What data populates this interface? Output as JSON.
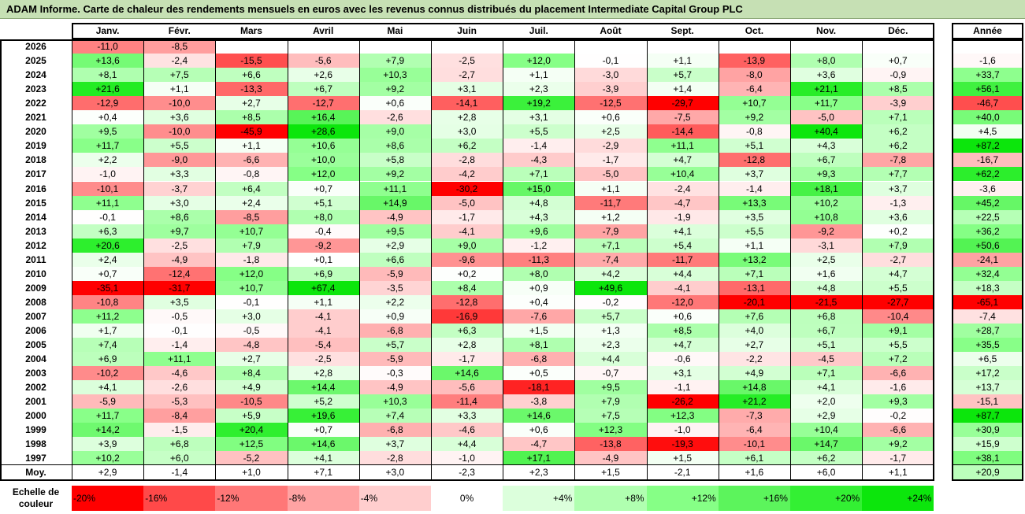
{
  "title": "ADAM Informe. Carte de chaleur des rendements mensuels en euros avec les revenus connus distribués du placement Intermediate Capital Group PLC",
  "chart_data": {
    "type": "heatmap",
    "months": [
      "Janv.",
      "Févr.",
      "Mars",
      "Avril",
      "Mai",
      "Juin",
      "Juil.",
      "Août",
      "Sept.",
      "Oct.",
      "Nov.",
      "Déc."
    ],
    "year_header": "Année",
    "rows": [
      {
        "year": "2026",
        "values": [
          "-11,0",
          "-8,5",
          "",
          "",
          "",
          "",
          "",
          "",
          "",
          "",
          "",
          ""
        ],
        "annual": ""
      },
      {
        "year": "2025",
        "values": [
          "+13,6",
          "-2,4",
          "-15,5",
          "-5,6",
          "+7,9",
          "-2,5",
          "+12,0",
          "-0,1",
          "+1,1",
          "-13,9",
          "+8,0",
          "+0,7"
        ],
        "annual": "-1,6"
      },
      {
        "year": "2024",
        "values": [
          "+8,1",
          "+7,5",
          "+6,6",
          "+2,6",
          "+10,3",
          "-2,7",
          "+1,1",
          "-3,0",
          "+5,7",
          "-8,0",
          "+3,6",
          "-0,9"
        ],
        "annual": "+33,7"
      },
      {
        "year": "2023",
        "values": [
          "+21,6",
          "+1,1",
          "-13,3",
          "+6,7",
          "+9,2",
          "+3,1",
          "+2,3",
          "-3,9",
          "+1,4",
          "-6,4",
          "+21,1",
          "+8,5"
        ],
        "annual": "+56,1"
      },
      {
        "year": "2022",
        "values": [
          "-12,9",
          "-10,0",
          "+2,7",
          "-12,7",
          "+0,6",
          "-14,1",
          "+19,2",
          "-12,5",
          "-29,7",
          "+10,7",
          "+11,7",
          "-3,9"
        ],
        "annual": "-46,7"
      },
      {
        "year": "2021",
        "values": [
          "+0,4",
          "+3,6",
          "+8,5",
          "+16,4",
          "-2,6",
          "+2,8",
          "+3,1",
          "+0,6",
          "-7,5",
          "+9,2",
          "-5,0",
          "+7,1"
        ],
        "annual": "+40,0"
      },
      {
        "year": "2020",
        "values": [
          "+9,5",
          "-10,0",
          "-45,9",
          "+28,6",
          "+9,0",
          "+3,0",
          "+5,5",
          "+2,5",
          "-14,4",
          "-0,8",
          "+40,4",
          "+6,2"
        ],
        "annual": "+4,5"
      },
      {
        "year": "2019",
        "values": [
          "+11,7",
          "+5,5",
          "+1,1",
          "+10,6",
          "+8,6",
          "+6,2",
          "-1,4",
          "-2,9",
          "+11,1",
          "+5,1",
          "+4,3",
          "+6,2"
        ],
        "annual": "+87,2"
      },
      {
        "year": "2018",
        "values": [
          "+2,2",
          "-9,0",
          "-6,6",
          "+10,0",
          "+5,8",
          "-2,8",
          "-4,3",
          "-1,7",
          "+4,7",
          "-12,8",
          "+6,7",
          "-7,8"
        ],
        "annual": "-16,7"
      },
      {
        "year": "2017",
        "values": [
          "-1,0",
          "+3,3",
          "-0,8",
          "+12,0",
          "+9,2",
          "-4,2",
          "+7,1",
          "-5,0",
          "+10,4",
          "+3,7",
          "+9,3",
          "+7,7"
        ],
        "annual": "+62,2"
      },
      {
        "year": "2016",
        "values": [
          "-10,1",
          "-3,7",
          "+6,4",
          "+0,7",
          "+11,1",
          "-30,2",
          "+15,0",
          "+1,1",
          "-2,4",
          "-1,4",
          "+18,1",
          "+3,7"
        ],
        "annual": "-3,6"
      },
      {
        "year": "2015",
        "values": [
          "+11,1",
          "+3,0",
          "+2,4",
          "+5,1",
          "+14,9",
          "-5,0",
          "+4,8",
          "-11,7",
          "-4,7",
          "+13,3",
          "+10,2",
          "-1,3"
        ],
        "annual": "+45,2"
      },
      {
        "year": "2014",
        "values": [
          "-0,1",
          "+8,6",
          "-8,5",
          "+8,0",
          "-4,9",
          "-1,7",
          "+4,3",
          "+1,2",
          "-1,9",
          "+3,5",
          "+10,8",
          "+3,6"
        ],
        "annual": "+22,5"
      },
      {
        "year": "2013",
        "values": [
          "+6,3",
          "+9,7",
          "+10,7",
          "-0,4",
          "+9,5",
          "-4,1",
          "+9,6",
          "-7,9",
          "+4,1",
          "+5,5",
          "-9,2",
          "+0,2"
        ],
        "annual": "+36,2"
      },
      {
        "year": "2012",
        "values": [
          "+20,6",
          "-2,5",
          "+7,9",
          "-9,2",
          "+2,9",
          "+9,0",
          "-1,2",
          "+7,1",
          "+5,4",
          "+1,1",
          "-3,1",
          "+7,9"
        ],
        "annual": "+50,6"
      },
      {
        "year": "2011",
        "values": [
          "+2,4",
          "-4,9",
          "-1,8",
          "+0,1",
          "+6,6",
          "-9,6",
          "-11,3",
          "-7,4",
          "-11,7",
          "+13,2",
          "+2,5",
          "-2,7"
        ],
        "annual": "-24,1"
      },
      {
        "year": "2010",
        "values": [
          "+0,7",
          "-12,4",
          "+12,0",
          "+6,9",
          "-5,9",
          "+0,2",
          "+8,0",
          "+4,2",
          "+4,4",
          "+7,1",
          "+1,6",
          "+4,7"
        ],
        "annual": "+32,4"
      },
      {
        "year": "2009",
        "values": [
          "-35,1",
          "-31,7",
          "+10,7",
          "+67,4",
          "-3,5",
          "+8,4",
          "+0,9",
          "+49,6",
          "-4,1",
          "-13,1",
          "+4,8",
          "+5,5"
        ],
        "annual": "+18,3"
      },
      {
        "year": "2008",
        "values": [
          "-10,8",
          "+3,5",
          "-0,1",
          "+1,1",
          "+2,2",
          "-12,8",
          "+0,4",
          "-0,2",
          "-12,0",
          "-20,1",
          "-21,5",
          "-27,7"
        ],
        "annual": "-65,1"
      },
      {
        "year": "2007",
        "values": [
          "+11,2",
          "-0,5",
          "+3,0",
          "-4,1",
          "+0,9",
          "-16,9",
          "-7,6",
          "+5,7",
          "+0,6",
          "+7,6",
          "+6,8",
          "-10,4"
        ],
        "annual": "-7,4"
      },
      {
        "year": "2006",
        "values": [
          "+1,7",
          "-0,1",
          "-0,5",
          "-4,1",
          "-6,8",
          "+6,3",
          "+1,5",
          "+1,3",
          "+8,5",
          "+4,0",
          "+6,7",
          "+9,1"
        ],
        "annual": "+28,7"
      },
      {
        "year": "2005",
        "values": [
          "+7,4",
          "-1,4",
          "-4,8",
          "-5,4",
          "+5,7",
          "+2,8",
          "+8,1",
          "+2,3",
          "+4,7",
          "+2,7",
          "+5,1",
          "+5,5"
        ],
        "annual": "+35,5"
      },
      {
        "year": "2004",
        "values": [
          "+6,9",
          "+11,1",
          "+2,7",
          "-2,5",
          "-5,9",
          "-1,7",
          "-6,8",
          "+4,4",
          "-0,6",
          "-2,2",
          "-4,5",
          "+7,2"
        ],
        "annual": "+6,5"
      },
      {
        "year": "2003",
        "values": [
          "-10,2",
          "-4,6",
          "+8,4",
          "+2,8",
          "-0,3",
          "+14,6",
          "+0,5",
          "-0,7",
          "+3,1",
          "+4,9",
          "+7,1",
          "-6,6"
        ],
        "annual": "+17,2"
      },
      {
        "year": "2002",
        "values": [
          "+4,1",
          "-2,6",
          "+4,9",
          "+14,4",
          "-4,9",
          "-5,6",
          "-18,1",
          "+9,5",
          "-1,1",
          "+14,8",
          "+4,1",
          "-1,6"
        ],
        "annual": "+13,7"
      },
      {
        "year": "2001",
        "values": [
          "-5,9",
          "-5,3",
          "-10,5",
          "+5,2",
          "+10,3",
          "-11,4",
          "-3,8",
          "+7,9",
          "-26,2",
          "+21,2",
          "+2,0",
          "+9,3"
        ],
        "annual": "-15,1"
      },
      {
        "year": "2000",
        "values": [
          "+11,7",
          "-8,4",
          "+5,9",
          "+19,6",
          "+7,4",
          "+3,3",
          "+14,6",
          "+7,5",
          "+12,3",
          "-7,3",
          "+2,9",
          "-0,2"
        ],
        "annual": "+87,7"
      },
      {
        "year": "1999",
        "values": [
          "+14,2",
          "-1,5",
          "+20,4",
          "+0,7",
          "-6,8",
          "-4,6",
          "+0,6",
          "+12,3",
          "-1,0",
          "-6,4",
          "+10,4",
          "-6,6"
        ],
        "annual": "+30,9"
      },
      {
        "year": "1998",
        "values": [
          "+3,9",
          "+6,8",
          "+12,5",
          "+14,6",
          "+3,7",
          "+4,4",
          "-4,7",
          "-13,8",
          "-19,3",
          "-10,1",
          "+14,7",
          "+9,2"
        ],
        "annual": "+15,9"
      },
      {
        "year": "1997",
        "values": [
          "+10,2",
          "+6,0",
          "-5,2",
          "+4,1",
          "-2,8",
          "-1,0",
          "+17,1",
          "-4,9",
          "+1,5",
          "+6,1",
          "+6,2",
          "-1,7"
        ],
        "annual": "+38,1"
      }
    ],
    "average": {
      "label": "Moy.",
      "values": [
        "+2,9",
        "-1,4",
        "+1,0",
        "+7,1",
        "+3,0",
        "-2,3",
        "+2,3",
        "+1,5",
        "-2,1",
        "+1,6",
        "+6,0",
        "+1,1"
      ],
      "annual": "+20,9"
    },
    "color_scale": {
      "label_line1": "Echelle de",
      "label_line2": "couleur",
      "steps": [
        {
          "label": "-20%",
          "value": -20,
          "color": "#ff0000"
        },
        {
          "label": "-16%",
          "value": -16,
          "color": "#ff4949"
        },
        {
          "label": "-12%",
          "value": -12,
          "color": "#ff7777"
        },
        {
          "label": "-8%",
          "value": -8,
          "color": "#ffa3a3"
        },
        {
          "label": "-4%",
          "value": -4,
          "color": "#ffcece"
        },
        {
          "label": "0%",
          "value": 0,
          "color": "#ffffff"
        },
        {
          "label": "+4%",
          "value": 4,
          "color": "#dcffdc"
        },
        {
          "label": "+8%",
          "value": 8,
          "color": "#b0ffb0"
        },
        {
          "label": "+12%",
          "value": 12,
          "color": "#86ff86"
        },
        {
          "label": "+16%",
          "value": 16,
          "color": "#5cf45c"
        },
        {
          "label": "+20%",
          "value": 20,
          "color": "#33f033"
        },
        {
          "label": "+24%",
          "value": 24,
          "color": "#0ce60c"
        }
      ]
    }
  }
}
